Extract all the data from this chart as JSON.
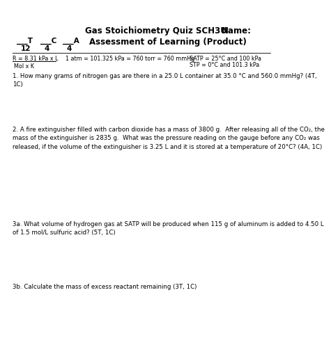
{
  "bg_color": "#ffffff",
  "text_color": "#000000",
  "title": "Gas Stoichiometry Quiz SCH3U",
  "name_label": "Name:",
  "t_label": "___T",
  "c_label": "___C",
  "a_label": "___A",
  "t_score": "12",
  "c_score": "4",
  "a_score": "4",
  "assessment": "Assessment of Learning (Product)",
  "formula_R_num": "R = 8.31 kPa x L",
  "formula_R_den": "Mol x K",
  "formula_eq": "1 atm = 101.325 kPa = 760 torr = 760 mmHg",
  "formula_SATP": "SATP = 25°C and 100 kPa",
  "formula_STP": "STP = 0°C and 101.3 kPa",
  "q1_text": "1. How many grams of nitrogen gas are there in a 25.0 L container at 35.0 °C and 560.0 mmHg? (4T,\n1C)",
  "q2_text": "2. A fire extinguisher filled with carbon dioxide has a mass of 3800 g.  After releasing all of the CO₂, the\nmass of the extinguisher is 2835 g.  What was the pressure reading on the gauge before any CO₂ was\nreleased, if the volume of the extinguisher is 3.25 L and it is stored at a temperature of 20°C? (4A, 1C)",
  "q3a_text": "3a. What volume of hydrogen gas at SATP will be produced when 115 g of aluminum is added to 4.50 L\nof 1.5 mol/L sulfuric acid? (5T, 1C)",
  "q3b_text": "3b. Calculate the mass of excess reactant remaining (3T, 1C)"
}
